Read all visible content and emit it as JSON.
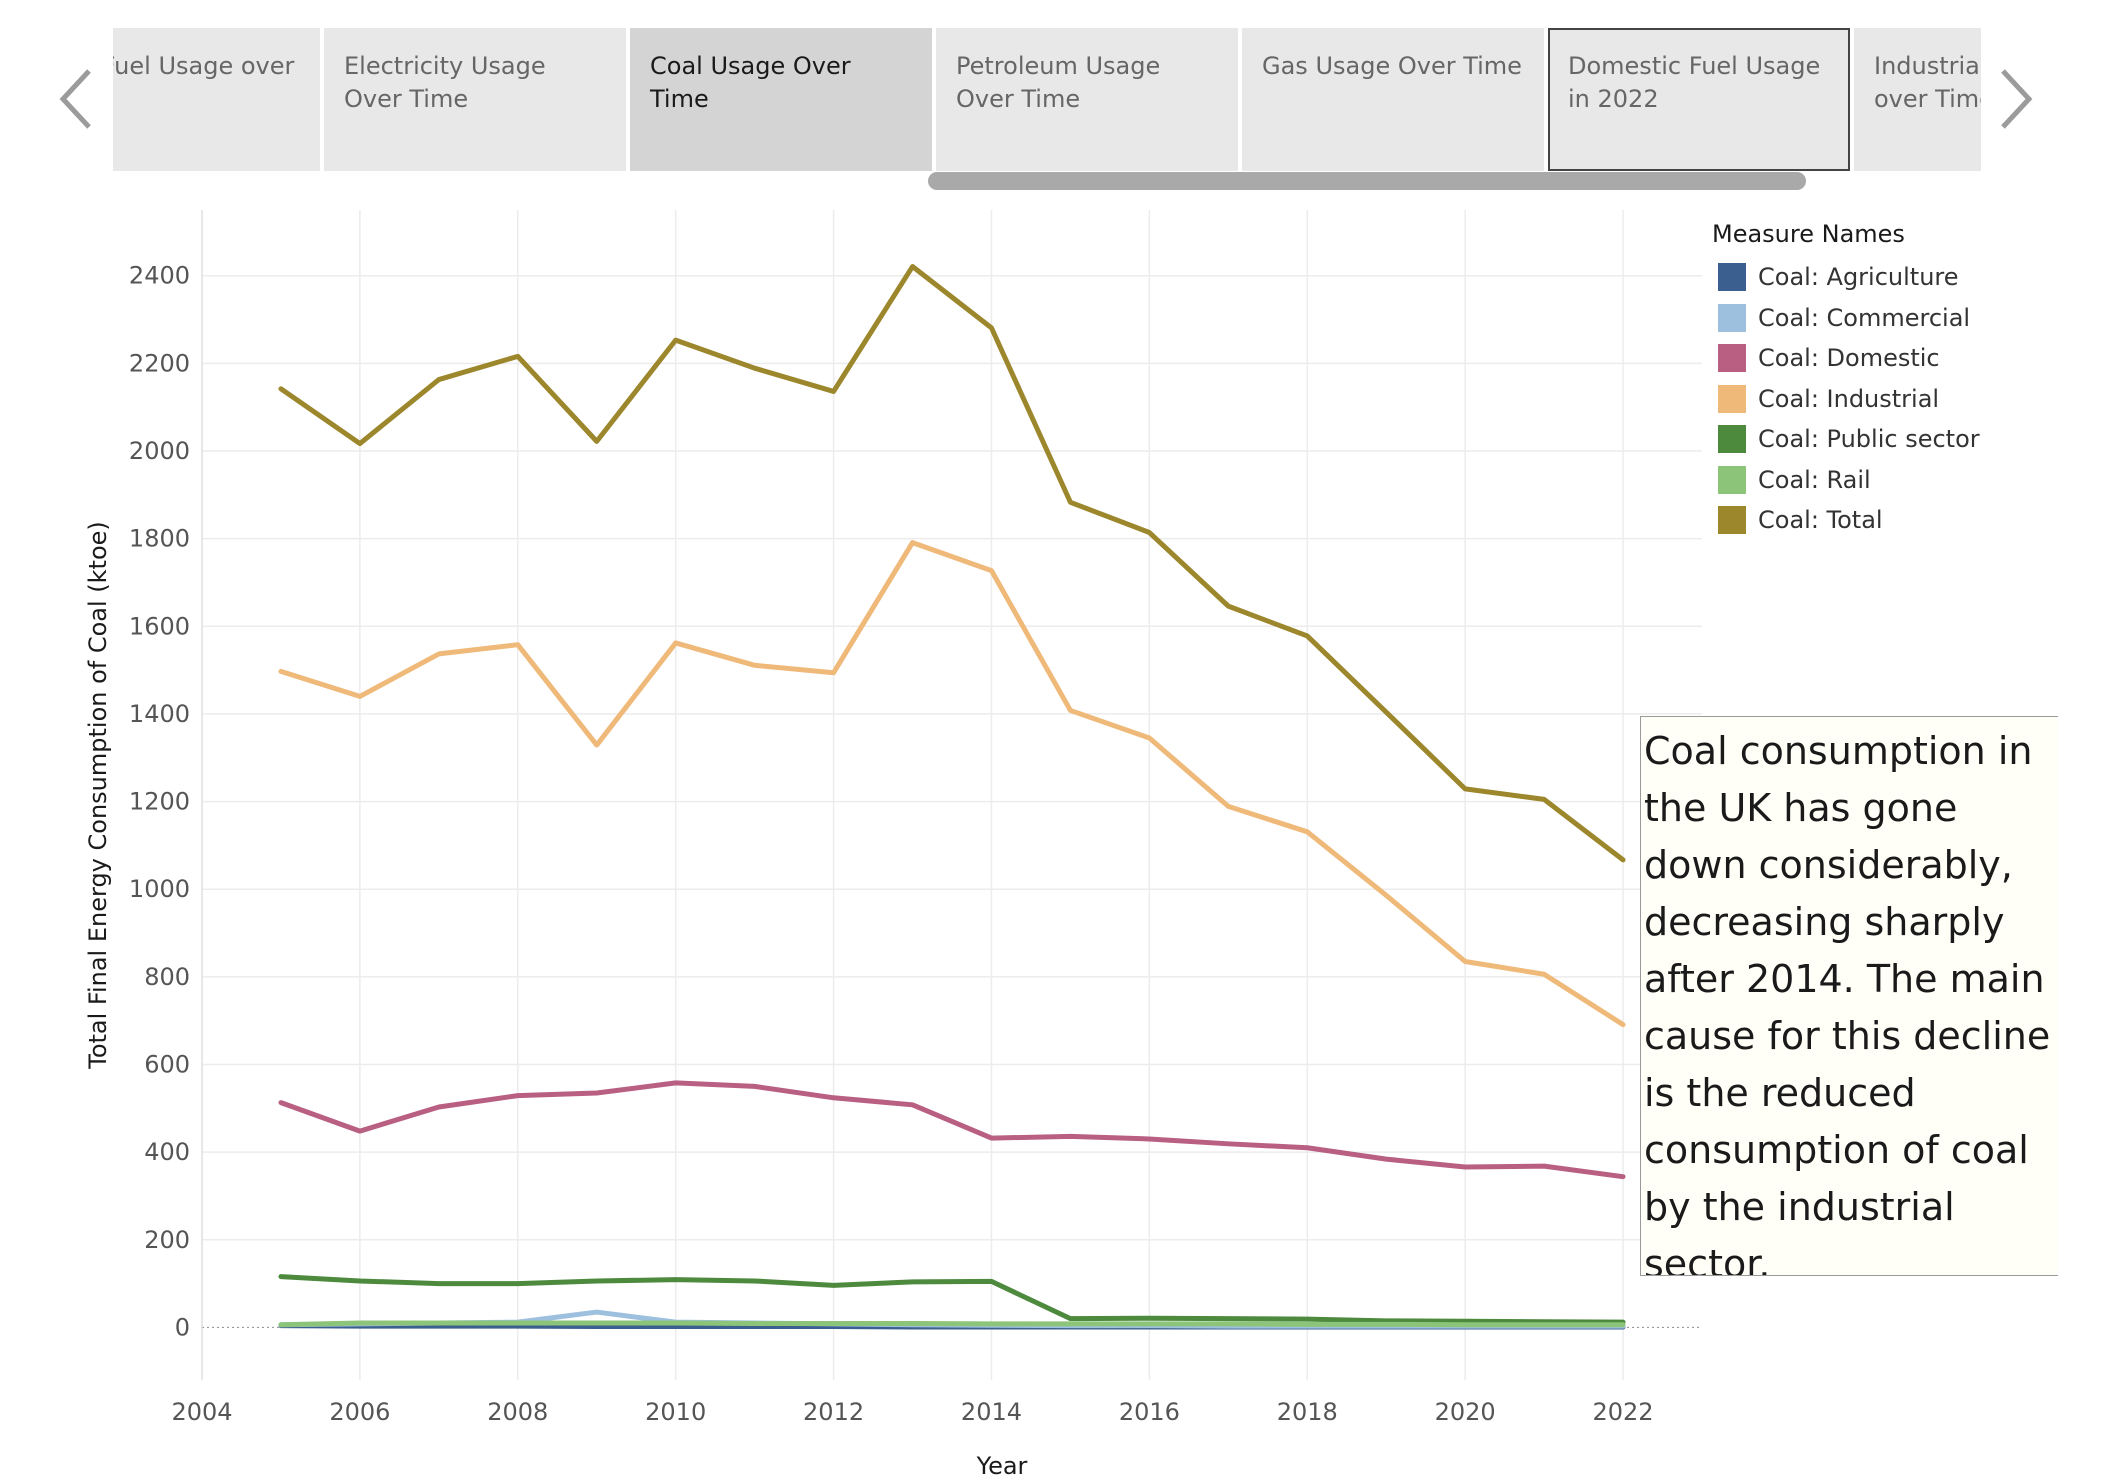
{
  "story_tabs": {
    "tabs": [
      {
        "label": "Total Fuel Usage over Time"
      },
      {
        "label": "Electricity Usage Over Time"
      },
      {
        "label": "Coal Usage Over Time"
      },
      {
        "label": "Petroleum Usage Over Time"
      },
      {
        "label": "Gas Usage Over Time"
      },
      {
        "label": "Domestic Fuel Usage in 2022"
      },
      {
        "label": "Industrial Fuel Usage over Time"
      }
    ],
    "active_index": 2,
    "focused_index": 5,
    "prev_icon": "chevron-left-icon",
    "next_icon": "chevron-right-icon"
  },
  "chart_data": {
    "type": "line",
    "xlabel": "Year",
    "ylabel": "Total Final Energy Consumption of Coal (ktoe)",
    "xlim": [
      2004,
      2023
    ],
    "ylim": [
      -120,
      2550
    ],
    "x_ticks": [
      2004,
      2006,
      2008,
      2010,
      2012,
      2014,
      2016,
      2018,
      2020,
      2022
    ],
    "y_ticks": [
      0,
      200,
      400,
      600,
      800,
      1000,
      1200,
      1400,
      1600,
      1800,
      2000,
      2200,
      2400
    ],
    "grid": true,
    "x": [
      2005,
      2006,
      2007,
      2008,
      2009,
      2010,
      2011,
      2012,
      2013,
      2014,
      2015,
      2016,
      2017,
      2018,
      2019,
      2020,
      2021,
      2022
    ],
    "legend": {
      "title": "Measure Names",
      "position": "right"
    },
    "series": [
      {
        "name": "Coal: Agriculture",
        "color": "#3b5f8f",
        "values": [
          4,
          3,
          3,
          3,
          2,
          2,
          2,
          2,
          1,
          1,
          1,
          1,
          1,
          1,
          1,
          1,
          1,
          1
        ]
      },
      {
        "name": "Coal: Commercial",
        "color": "#9ec0df",
        "values": [
          6,
          8,
          10,
          12,
          35,
          12,
          10,
          8,
          6,
          5,
          4,
          4,
          3,
          3,
          3,
          3,
          3,
          3
        ]
      },
      {
        "name": "Coal: Domestic",
        "color": "#b85f82",
        "values": [
          513,
          448,
          503,
          529,
          535,
          558,
          550,
          524,
          508,
          432,
          436,
          430,
          419,
          410,
          384,
          366,
          368,
          344
        ]
      },
      {
        "name": "Coal: Industrial",
        "color": "#efb979",
        "values": [
          1497,
          1440,
          1537,
          1558,
          1329,
          1562,
          1511,
          1494,
          1791,
          1727,
          1408,
          1345,
          1189,
          1131,
          986,
          835,
          806,
          691
        ]
      },
      {
        "name": "Coal: Public sector",
        "color": "#4d8a3e",
        "values": [
          116,
          106,
          100,
          100,
          106,
          109,
          106,
          96,
          104,
          105,
          20,
          21,
          20,
          19,
          15,
          14,
          13,
          12
        ]
      },
      {
        "name": "Coal: Rail",
        "color": "#8cc57a",
        "values": [
          6,
          10,
          10,
          10,
          10,
          10,
          9,
          9,
          9,
          8,
          8,
          8,
          8,
          7,
          7,
          6,
          6,
          6
        ]
      },
      {
        "name": "Coal: Total",
        "color": "#9c872c",
        "values": [
          2142,
          2017,
          2163,
          2216,
          2022,
          2253,
          2189,
          2136,
          2421,
          2281,
          1883,
          1814,
          1646,
          1578,
          1404,
          1229,
          1205,
          1067
        ]
      }
    ],
    "annotation": "Coal consumption in the UK has gone down considerably, decreasing sharply after 2014. The main cause for this decline is the reduced consumption of coal by the industrial sector."
  }
}
